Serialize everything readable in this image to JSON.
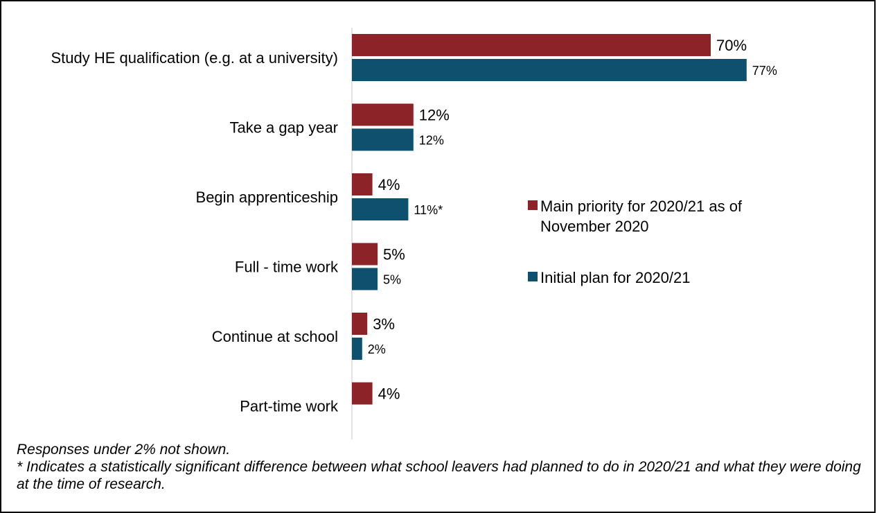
{
  "chart_data": {
    "type": "bar",
    "orientation": "horizontal",
    "categories": [
      "Study HE qualification (e.g. at a university)",
      "Take a gap year",
      "Begin apprenticeship",
      "Full - time work",
      "Continue at school",
      "Part-time work"
    ],
    "series": [
      {
        "name": "Main priority for 2020/21 as of November 2020",
        "values": [
          70,
          12,
          4,
          5,
          3,
          4
        ],
        "labels": [
          "70%",
          "12%",
          "4%",
          "5%",
          "3%",
          "4%"
        ],
        "color": "#8b2329"
      },
      {
        "name": "Initial plan for 2020/21",
        "values": [
          77,
          12,
          11,
          5,
          2,
          null
        ],
        "labels": [
          "77%",
          "12%",
          "11%*",
          "5%",
          "2%",
          ""
        ],
        "color": "#10506f"
      }
    ],
    "legend": {
      "position": "right",
      "lines": [
        [
          "Main priority for 2020/21 as of",
          "November 2020"
        ],
        [
          "Initial plan for 2020/21"
        ]
      ]
    },
    "xlim": [
      0,
      100
    ],
    "grid": false
  },
  "notes": {
    "line1": "Responses under 2% not shown.",
    "line2": "* Indicates a statistically significant difference between what school leavers had planned to do in 2020/21 and what they were doing at the time of research."
  }
}
